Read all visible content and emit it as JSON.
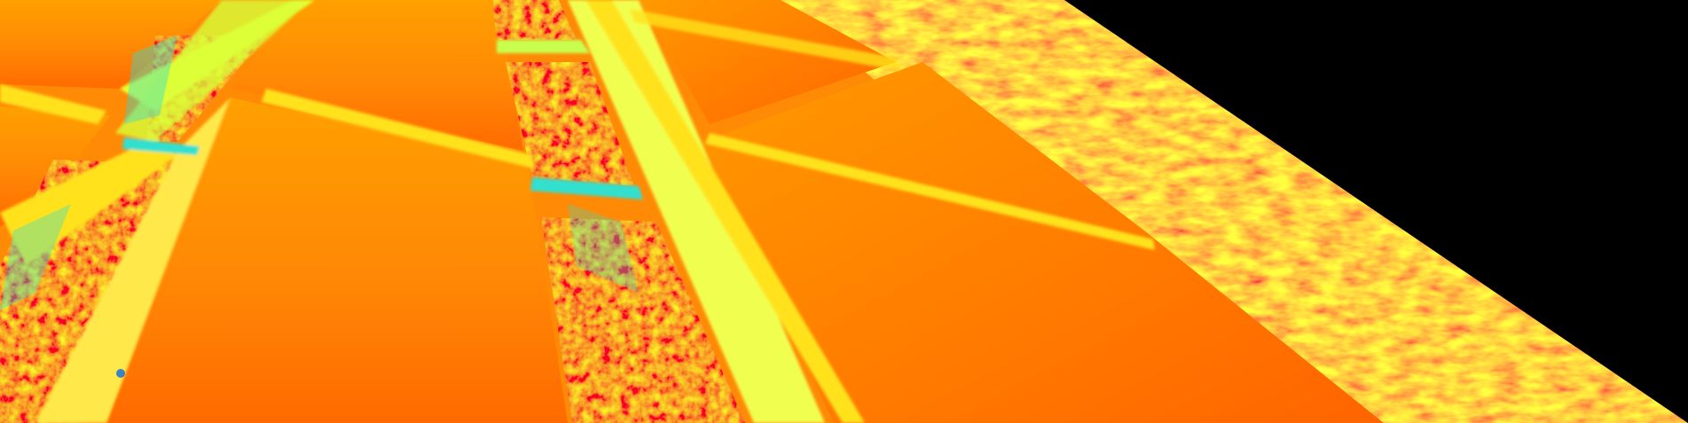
{
  "image": {
    "description_kind": "thermal-false-color-aerial-view",
    "palette": {
      "hot_red": "#e0300a",
      "hot_orange": "#ff6a00",
      "warm_orange": "#ff8a05",
      "warm_amber": "#ffa000",
      "mild_yellow": "#ffe21a",
      "cool_green": "#b8ff40",
      "cold_cyan": "#30e0d0",
      "background": "#000000"
    }
  }
}
